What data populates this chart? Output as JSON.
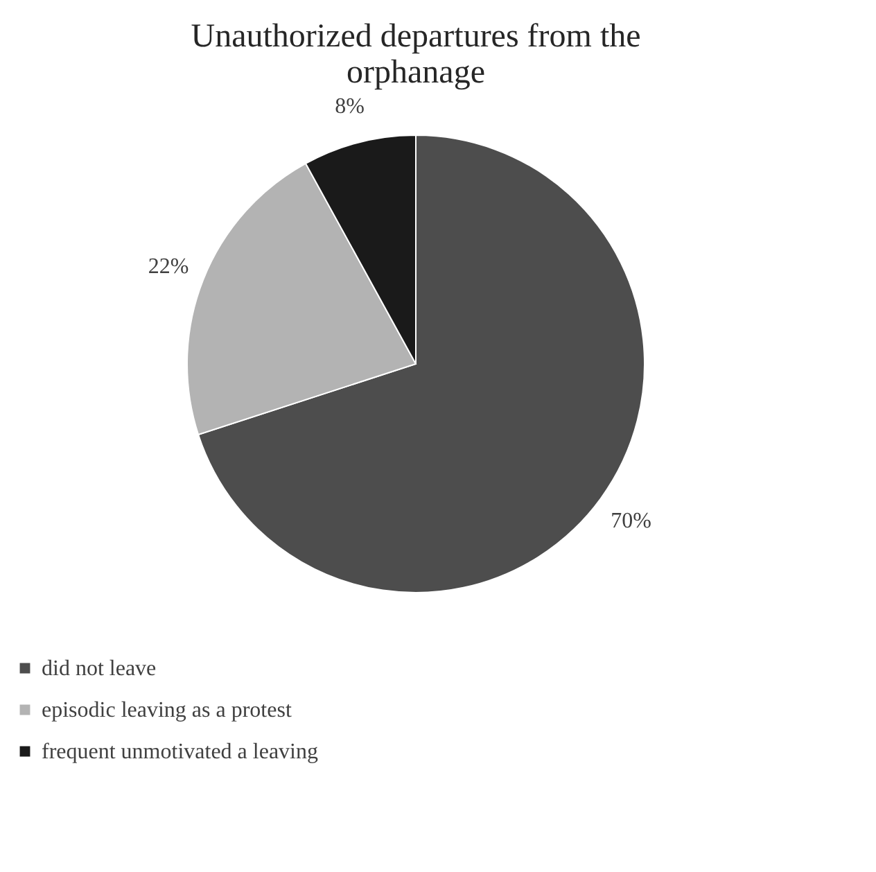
{
  "chart_data": {
    "type": "pie",
    "title": "Unauthorized departures from the orphanage",
    "categories": [
      "did not leave",
      "episodic leaving as a protest",
      "frequent unmotivated a leaving"
    ],
    "values": [
      70,
      22,
      8
    ],
    "colors": [
      "#4d4d4d",
      "#b3b3b3",
      "#1a1a1a"
    ],
    "value_labels": [
      "70%",
      "22%",
      "8%"
    ],
    "legend": "bottom"
  }
}
